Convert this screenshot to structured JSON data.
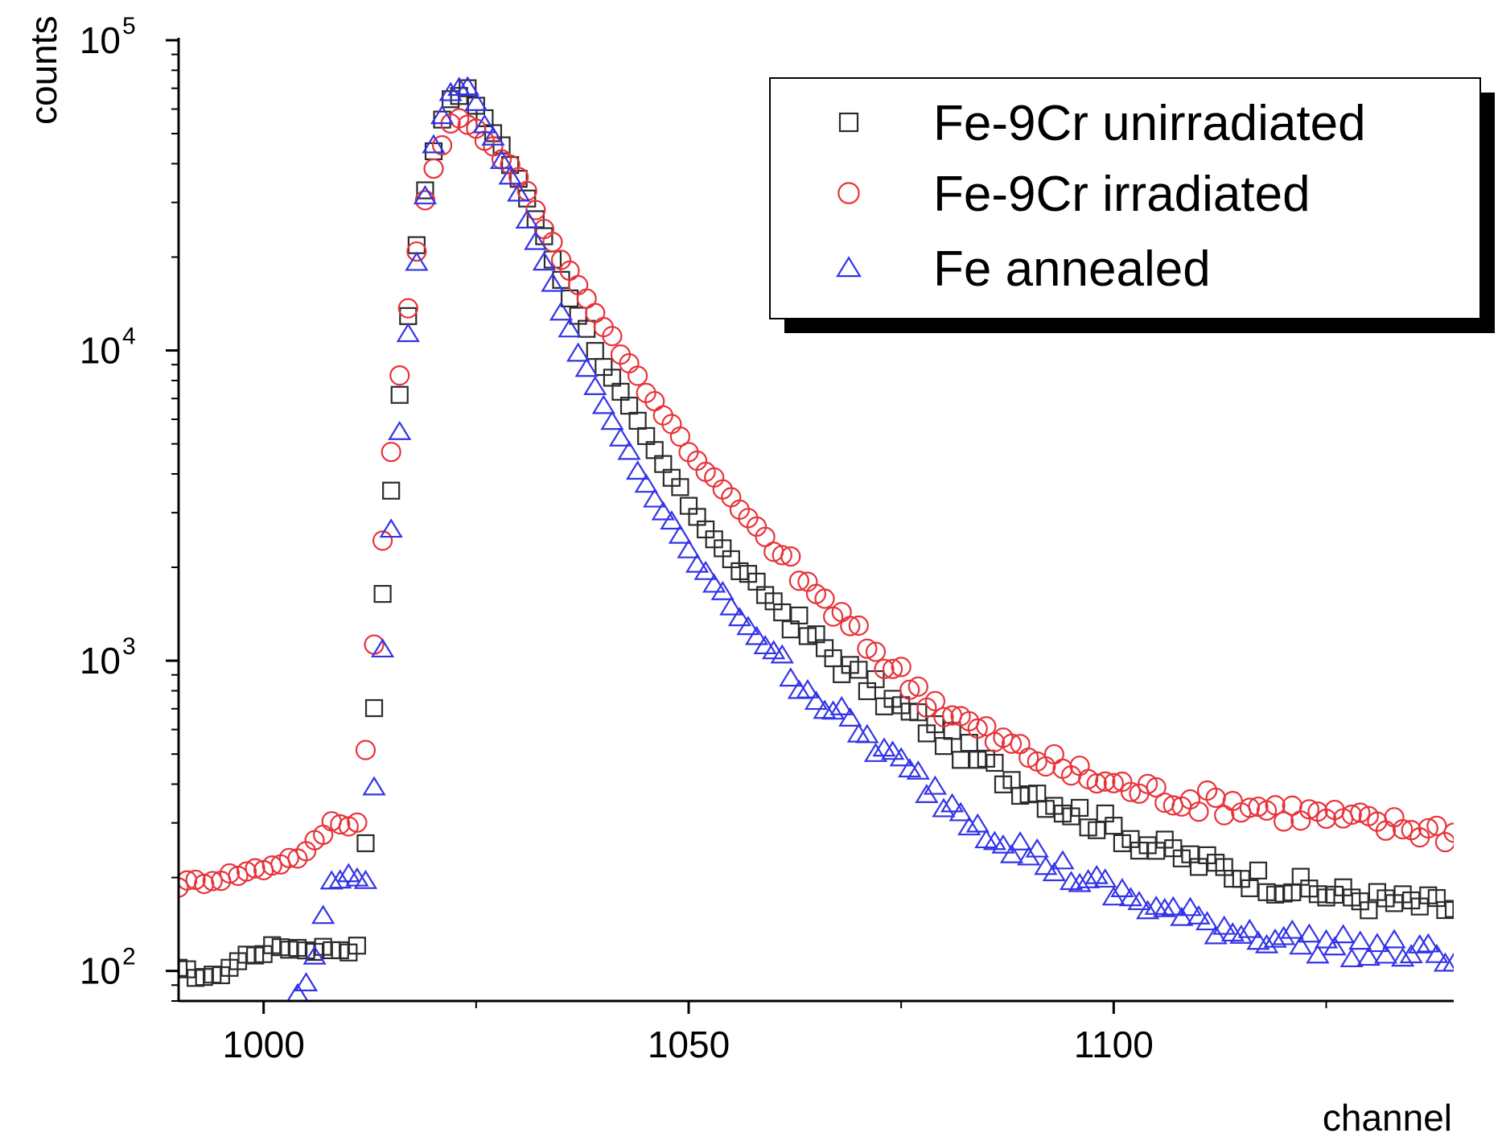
{
  "chart_data": {
    "type": "scatter",
    "title": "",
    "xlabel": "channel",
    "ylabel": "counts",
    "xlim": [
      990,
      1140
    ],
    "ylim": [
      80,
      100000
    ],
    "yscale": "log",
    "grid": false,
    "legend_position": "top-right",
    "x_ticks": [
      {
        "value": 1000,
        "label": "1000"
      },
      {
        "value": 1050,
        "label": "1050"
      },
      {
        "value": 1100,
        "label": "1100"
      }
    ],
    "y_ticks": [
      {
        "value": 100,
        "base": "10",
        "exp": "2"
      },
      {
        "value": 1000,
        "base": "10",
        "exp": "3"
      },
      {
        "value": 10000,
        "base": "10",
        "exp": "4"
      },
      {
        "value": 100000,
        "base": "10",
        "exp": "5"
      }
    ],
    "series": [
      {
        "name": "Fe-9Cr unirradiated",
        "marker": "square",
        "color": "#2b2b2b",
        "peak_x": 1023,
        "peak": 68000,
        "rise_sigma": 3.3,
        "pre_x": [
          990,
          994,
          998,
          1002,
          1005
        ],
        "pre_values": [
          100,
          95,
          112,
          120,
          118
        ],
        "tail_x": [
          1025,
          1030,
          1035,
          1040,
          1045,
          1050,
          1055,
          1060,
          1065,
          1070,
          1075,
          1080,
          1085,
          1090,
          1095,
          1100,
          1105,
          1110,
          1115,
          1120,
          1125,
          1130,
          1135,
          1140
        ],
        "tail_values": [
          62000,
          36000,
          17000,
          9000,
          5200,
          3200,
          2100,
          1550,
          1150,
          880,
          700,
          570,
          460,
          390,
          330,
          290,
          250,
          225,
          205,
          190,
          178,
          170,
          165,
          160
        ]
      },
      {
        "name": "Fe-9Cr irradiated",
        "marker": "circle",
        "color": "#e8333a",
        "peak_x": 1023,
        "peak": 55000,
        "rise_sigma": 3.6,
        "pre_x": [
          990,
          995,
          1000,
          1005,
          1008
        ],
        "pre_values": [
          190,
          200,
          215,
          240,
          300
        ],
        "tail_x": [
          1025,
          1030,
          1035,
          1040,
          1045,
          1050,
          1055,
          1060,
          1065,
          1070,
          1075,
          1080,
          1085,
          1090,
          1095,
          1100,
          1105,
          1110,
          1115,
          1120,
          1125,
          1130,
          1135,
          1140
        ],
        "tail_values": [
          52000,
          36000,
          20000,
          12000,
          7500,
          4800,
          3300,
          2300,
          1650,
          1200,
          900,
          700,
          580,
          500,
          440,
          400,
          375,
          355,
          345,
          330,
          315,
          300,
          290,
          280
        ]
      },
      {
        "name": "Fe annealed",
        "marker": "triangle",
        "color": "#3333e8",
        "peak_x": 1023,
        "peak": 72000,
        "rise_sigma": 3.1,
        "pre_x": [
          1003,
          1005,
          1006,
          1007,
          1008
        ],
        "pre_values": [
          75,
          92,
          110,
          150,
          200
        ],
        "tail_x": [
          1025,
          1030,
          1035,
          1040,
          1045,
          1050,
          1055,
          1060,
          1065,
          1070,
          1075,
          1080,
          1085,
          1090,
          1095,
          1100,
          1105,
          1110,
          1115,
          1120,
          1125,
          1130,
          1135,
          1140
        ],
        "tail_values": [
          62000,
          32000,
          13500,
          6500,
          3700,
          2250,
          1500,
          1050,
          770,
          590,
          460,
          360,
          290,
          240,
          205,
          180,
          160,
          145,
          135,
          128,
          122,
          118,
          115,
          112
        ]
      }
    ]
  }
}
